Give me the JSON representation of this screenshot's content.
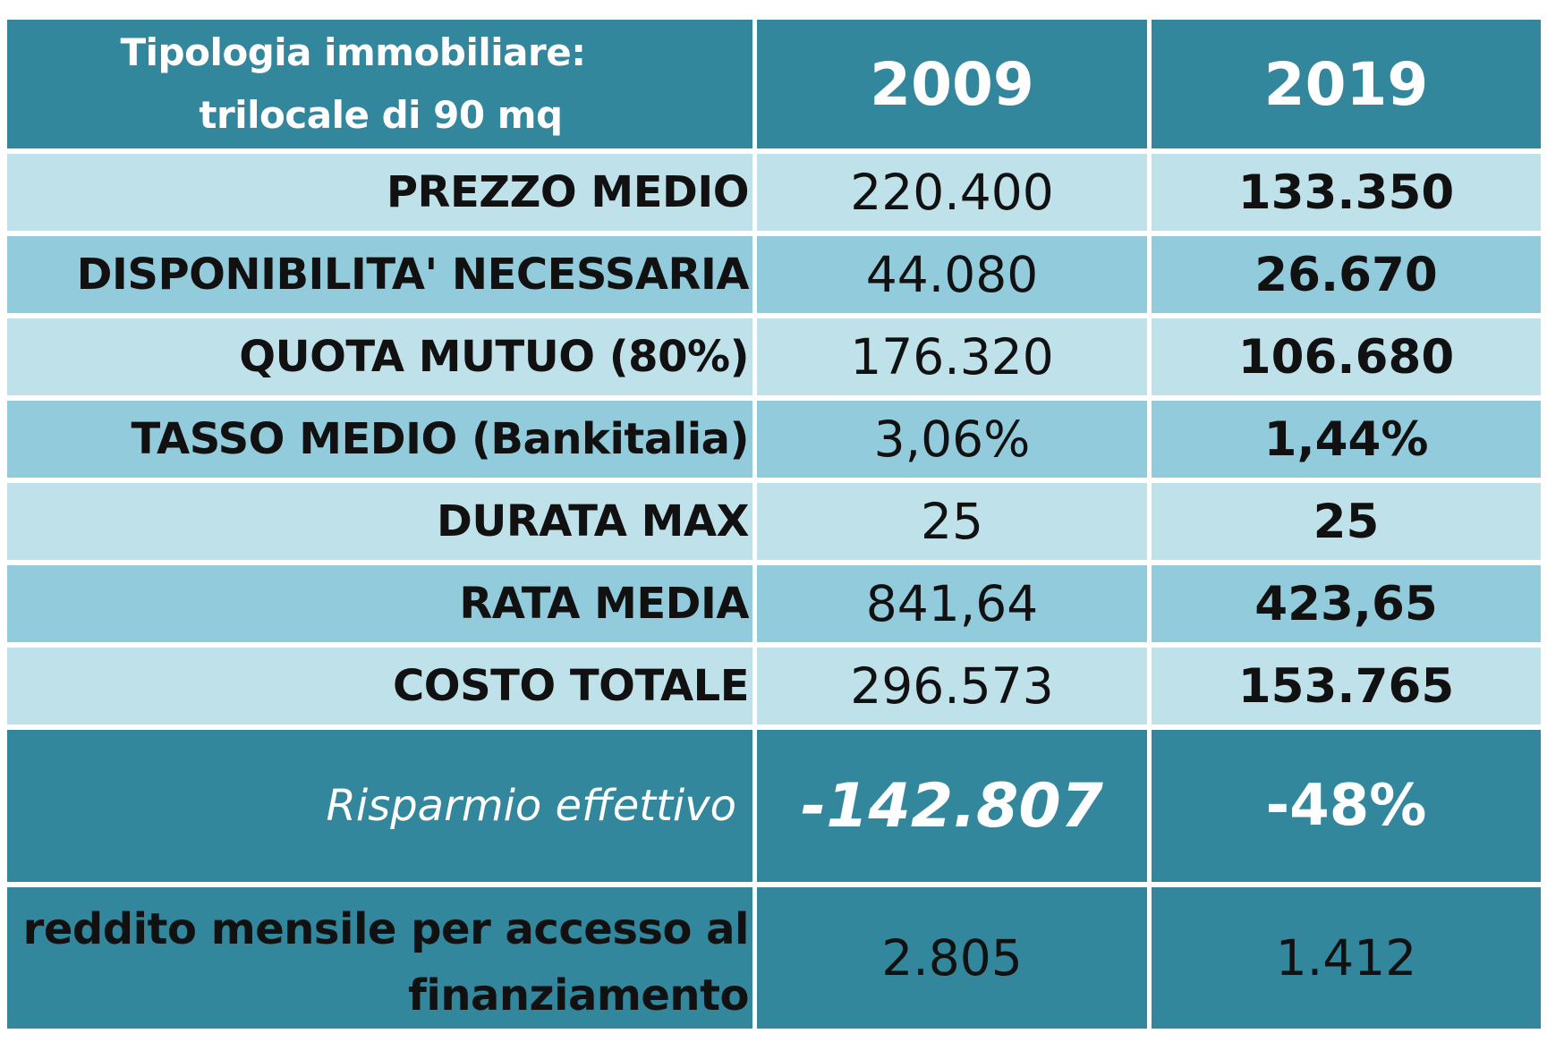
{
  "chart_data": {
    "type": "table",
    "header": {
      "label_line1": "Tipologia immobiliare:",
      "label_line2": "trilocale di 90 mq",
      "years": [
        "2009",
        "2019"
      ]
    },
    "rows": [
      {
        "label": "PREZZO MEDIO",
        "v2009": "220.400",
        "v2019": "133.350"
      },
      {
        "label": "DISPONIBILITA' NECESSARIA",
        "v2009": "44.080",
        "v2019": "26.670"
      },
      {
        "label": "QUOTA MUTUO (80%)",
        "v2009": "176.320",
        "v2019": "106.680"
      },
      {
        "label": "TASSO MEDIO (Bankitalia)",
        "v2009": "3,06%",
        "v2019": "1,44%"
      },
      {
        "label": "DURATA MAX",
        "v2009": "25",
        "v2019": "25"
      },
      {
        "label": "RATA MEDIA",
        "v2009": "841,64",
        "v2019": "423,65"
      },
      {
        "label": "COSTO TOTALE",
        "v2009": "296.573",
        "v2019": "153.765"
      }
    ],
    "saving": {
      "label": "Risparmio effettivo",
      "amount": "-142.807",
      "percent": "-48%"
    },
    "income": {
      "label_line1": "reddito mensile per accesso al",
      "label_line2": "finanziamento",
      "v2009": "2.805",
      "v2019": "1.412"
    }
  },
  "colors": {
    "header": "#33879d",
    "row_light": "#bfe1ea",
    "row_mid": "#92cbdc"
  }
}
